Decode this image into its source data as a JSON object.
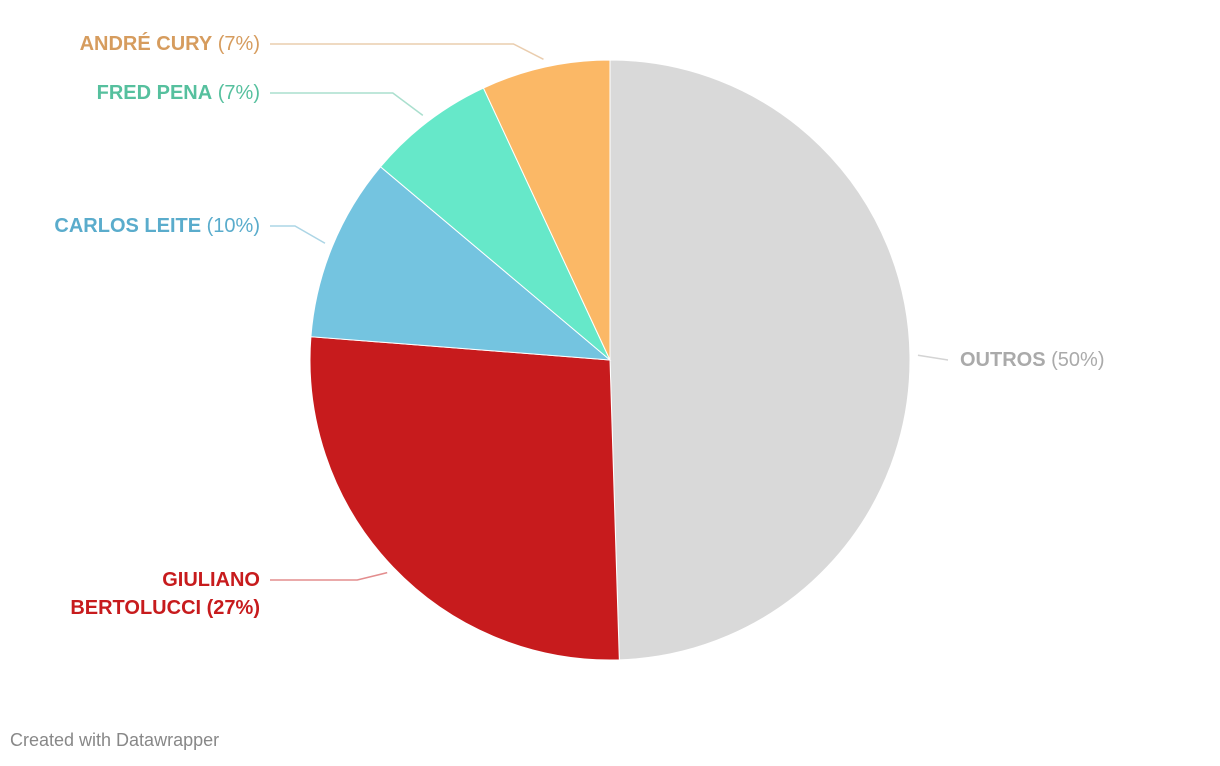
{
  "chart_data": {
    "type": "pie",
    "categories": [
      "OUTROS",
      "GIULIANO BERTOLUCCI",
      "CARLOS LEITE",
      "FRED PENA",
      "ANDRÉ CURY"
    ],
    "values": [
      50,
      27,
      10,
      7,
      7
    ],
    "value_labels": [
      "(50%)",
      "(27%)",
      "(10%)",
      "(7%)",
      "(7%)"
    ],
    "colors": [
      "#d9d9d9",
      "#c71b1d",
      "#74c4e0",
      "#66e8c9",
      "#fbb866"
    ],
    "label_colors": [
      "#aaaaaa",
      "#c71b1d",
      "#5aaccc",
      "#56c09e",
      "#d69c5e"
    ]
  },
  "footer": "Created with Datawrapper"
}
